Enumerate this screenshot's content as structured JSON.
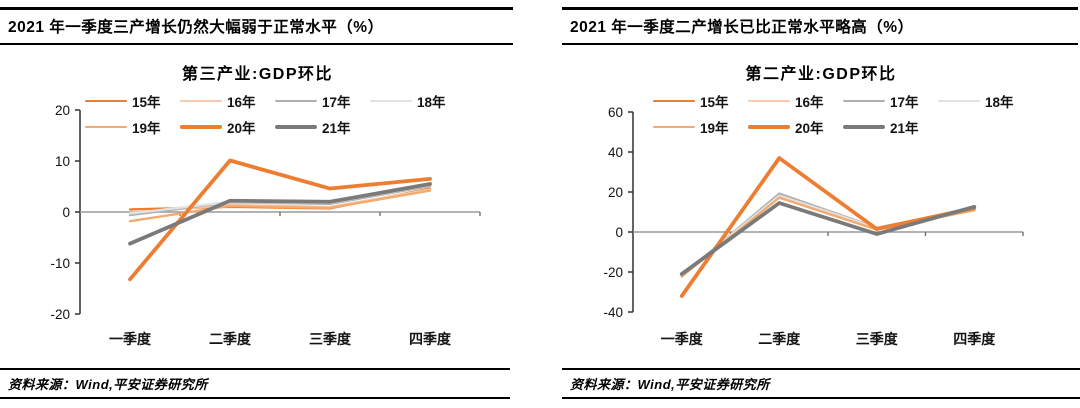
{
  "source_note": "资料来源：Wind,平安证券研究所",
  "panels": [
    {
      "header": "2021 年一季度三产增长仍然大幅弱于正常水平（%）"
    },
    {
      "header": "2021 年一季度二产增长已比正常水平略高（%）"
    }
  ],
  "series_styles": [
    {
      "name": "15年",
      "color": "#ED7D31",
      "width": 2.3
    },
    {
      "name": "16年",
      "color": "#F8CBAD",
      "width": 2.3
    },
    {
      "name": "17年",
      "color": "#AFAFAF",
      "width": 2.3
    },
    {
      "name": "18年",
      "color": "#E2E2E2",
      "width": 2.3
    },
    {
      "name": "19年",
      "color": "#F4A96D",
      "width": 2.3
    },
    {
      "name": "20年",
      "color": "#ED7D31",
      "width": 3.8
    },
    {
      "name": "21年",
      "color": "#7A7A7A",
      "width": 3.8
    }
  ],
  "chart_data": [
    {
      "type": "line",
      "title": "第三产业:GDP环比",
      "categories": [
        "一季度",
        "二季度",
        "三季度",
        "四季度"
      ],
      "ylim": [
        -20,
        20
      ],
      "yticks": [
        20,
        10,
        0,
        -10,
        -20
      ],
      "grid": false,
      "legend_position": "top",
      "series": [
        {
          "name": "15年",
          "values": [
            0.5,
            1.0,
            0.7,
            4.6
          ]
        },
        {
          "name": "16年",
          "values": [
            -0.2,
            1.4,
            1.0,
            4.4
          ]
        },
        {
          "name": "17年",
          "values": [
            -0.6,
            1.9,
            1.6,
            5.1
          ]
        },
        {
          "name": "18年",
          "values": [
            -0.3,
            2.0,
            1.8,
            5.3
          ]
        },
        {
          "name": "19年",
          "values": [
            -1.8,
            1.2,
            0.8,
            4.2
          ]
        },
        {
          "name": "20年",
          "values": [
            -13.2,
            10.1,
            4.6,
            6.5
          ]
        },
        {
          "name": "21年",
          "values": [
            -6.2,
            2.2,
            2.0,
            5.5
          ]
        }
      ]
    },
    {
      "type": "line",
      "title": "第二产业:GDP环比",
      "categories": [
        "一季度",
        "二季度",
        "三季度",
        "四季度"
      ],
      "ylim": [
        -40,
        60
      ],
      "yticks": [
        60,
        40,
        20,
        0,
        -20,
        -40
      ],
      "grid": false,
      "legend_position": "top",
      "series": [
        {
          "name": "15年",
          "values": [
            -22.0,
            17.6,
            1.8,
            11.2
          ]
        },
        {
          "name": "16年",
          "values": [
            -22.4,
            18.6,
            1.5,
            11.0
          ]
        },
        {
          "name": "17年",
          "values": [
            -21.8,
            19.2,
            2.2,
            11.5
          ]
        },
        {
          "name": "18年",
          "values": [
            -21.6,
            18.2,
            2.0,
            11.2
          ]
        },
        {
          "name": "19年",
          "values": [
            -22.2,
            17.2,
            1.2,
            10.8
          ]
        },
        {
          "name": "20年",
          "values": [
            -32.0,
            37.0,
            1.5,
            12.0
          ]
        },
        {
          "name": "21年",
          "values": [
            -21.0,
            14.5,
            -1.0,
            12.6
          ]
        }
      ]
    }
  ]
}
